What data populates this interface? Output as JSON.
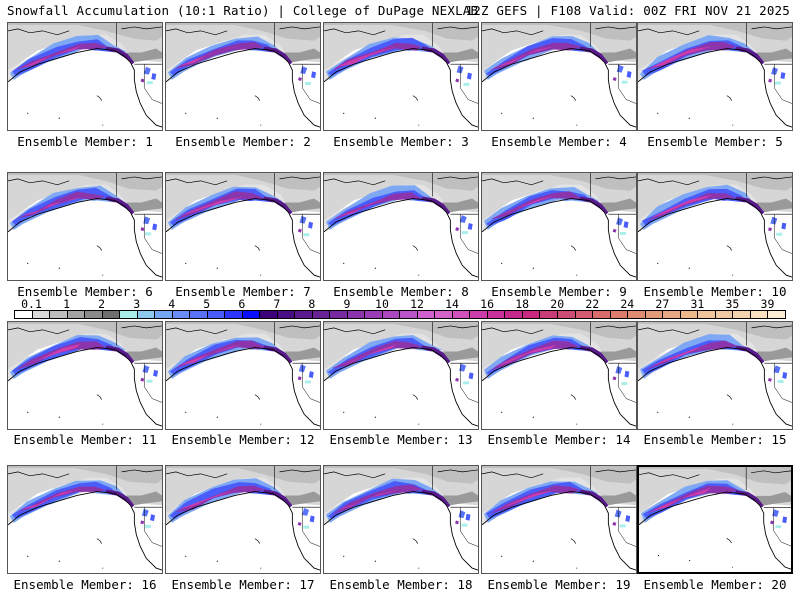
{
  "header": {
    "title_left": "Snowfall Accumulation (10:1 Ratio) | College of DuPage NEXLAB",
    "title_right": "12Z GEFS | F108 Valid: 00Z FRI NOV 21 2025"
  },
  "panels": [
    {
      "label": "Ensemble Member: 1",
      "member": 1,
      "selected": false
    },
    {
      "label": "Ensemble Member: 2",
      "member": 2,
      "selected": false
    },
    {
      "label": "Ensemble Member: 3",
      "member": 3,
      "selected": false
    },
    {
      "label": "Ensemble Member: 4",
      "member": 4,
      "selected": false
    },
    {
      "label": "Ensemble Member: 5",
      "member": 5,
      "selected": false
    },
    {
      "label": "Ensemble Member: 6",
      "member": 6,
      "selected": false
    },
    {
      "label": "Ensemble Member: 7",
      "member": 7,
      "selected": false
    },
    {
      "label": "Ensemble Member: 8",
      "member": 8,
      "selected": false
    },
    {
      "label": "Ensemble Member: 9",
      "member": 9,
      "selected": false
    },
    {
      "label": "Ensemble Member: 10",
      "member": 10,
      "selected": false
    },
    {
      "label": "Ensemble Member: 11",
      "member": 11,
      "selected": false
    },
    {
      "label": "Ensemble Member: 12",
      "member": 12,
      "selected": false
    },
    {
      "label": "Ensemble Member: 13",
      "member": 13,
      "selected": false
    },
    {
      "label": "Ensemble Member: 14",
      "member": 14,
      "selected": false
    },
    {
      "label": "Ensemble Member: 15",
      "member": 15,
      "selected": false
    },
    {
      "label": "Ensemble Member: 16",
      "member": 16,
      "selected": false
    },
    {
      "label": "Ensemble Member: 17",
      "member": 17,
      "selected": false
    },
    {
      "label": "Ensemble Member: 18",
      "member": 18,
      "selected": false
    },
    {
      "label": "Ensemble Member: 19",
      "member": 19,
      "selected": false
    },
    {
      "label": "Ensemble Member: 20",
      "member": 20,
      "selected": true
    }
  ],
  "colorbar": {
    "units": "inches",
    "labels": [
      "0.1",
      "1",
      "2",
      "3",
      "4",
      "5",
      "6",
      "7",
      "8",
      "9",
      "10",
      "12",
      "14",
      "16",
      "18",
      "20",
      "22",
      "24",
      "27",
      "31",
      "35",
      "39"
    ],
    "colors": [
      "#ffffff",
      "#d9d9d9",
      "#bdbdbd",
      "#a3a3a3",
      "#8a8a8a",
      "#6e6e6e",
      "#a8eeea",
      "#8cc8f0",
      "#74a8f4",
      "#6a8cf6",
      "#5873f8",
      "#4a5cfa",
      "#2f36fc",
      "#0a10ff",
      "#3c0078",
      "#4a0e84",
      "#581a8c",
      "#6a2394",
      "#7a2aa0",
      "#8c34ac",
      "#9a3cb6",
      "#ac48c0",
      "#b856c8",
      "#d060d0",
      "#d464c8",
      "#d050bc",
      "#cc3cac",
      "#c8309c",
      "#c4288c",
      "#c82880",
      "#c83c78",
      "#cc4c74",
      "#d45c70",
      "#d86c6c",
      "#dc7c6c",
      "#e08c70",
      "#e49c78",
      "#e8a884",
      "#ecb88c",
      "#f0c49c",
      "#f0c8a4",
      "#f4d4b0",
      "#f8e0c0",
      "#fcecd4"
    ]
  }
}
